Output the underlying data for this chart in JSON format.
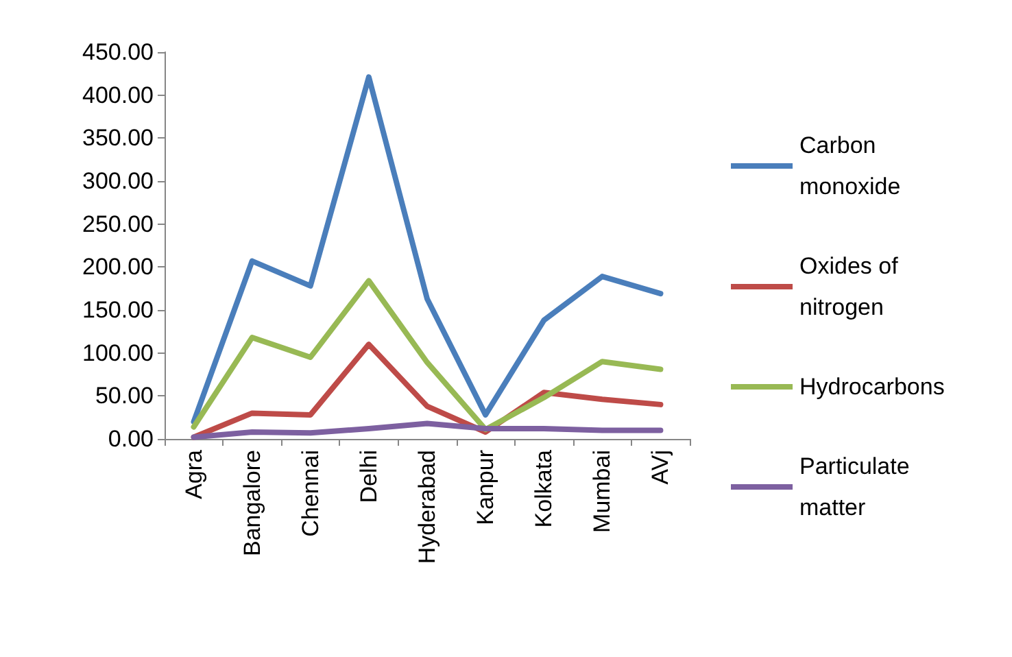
{
  "chart_data": {
    "type": "line",
    "categories": [
      "Agra",
      "Bangalore",
      "Chennai",
      "Delhi",
      "Hyderabad",
      "Kanpur",
      "Kolkata",
      "Mumbai",
      "AVj"
    ],
    "series": [
      {
        "name": "Carbon monoxide",
        "color": "#4a7ebb",
        "values": [
          20,
          207,
          178,
          421,
          163,
          28,
          138,
          189,
          169
        ]
      },
      {
        "name": "Oxides of nitrogen",
        "color": "#be4b48",
        "values": [
          2,
          30,
          28,
          110,
          38,
          8,
          54,
          46,
          40
        ]
      },
      {
        "name": "Hydrocarbons",
        "color": "#98b954",
        "values": [
          14,
          118,
          95,
          184,
          89,
          11,
          48,
          90,
          81
        ]
      },
      {
        "name": "Particulate matter",
        "color": "#7d60a0",
        "values": [
          2,
          8,
          7,
          12,
          18,
          12,
          12,
          10,
          10
        ]
      }
    ],
    "ylim": [
      0,
      450
    ],
    "yticks": [
      {
        "value": 0,
        "label": "0.00"
      },
      {
        "value": 50,
        "label": "50.00"
      },
      {
        "value": 100,
        "label": "100.00"
      },
      {
        "value": 150,
        "label": "150.00"
      },
      {
        "value": 200,
        "label": "200.00"
      },
      {
        "value": 250,
        "label": "250.00"
      },
      {
        "value": 300,
        "label": "300.00"
      },
      {
        "value": 350,
        "label": "350.00"
      },
      {
        "value": 400,
        "label": "400.00"
      },
      {
        "value": 450,
        "label": "450.00"
      }
    ],
    "grid": false,
    "legend": "right",
    "marker": "none",
    "line_style": "solid"
  }
}
